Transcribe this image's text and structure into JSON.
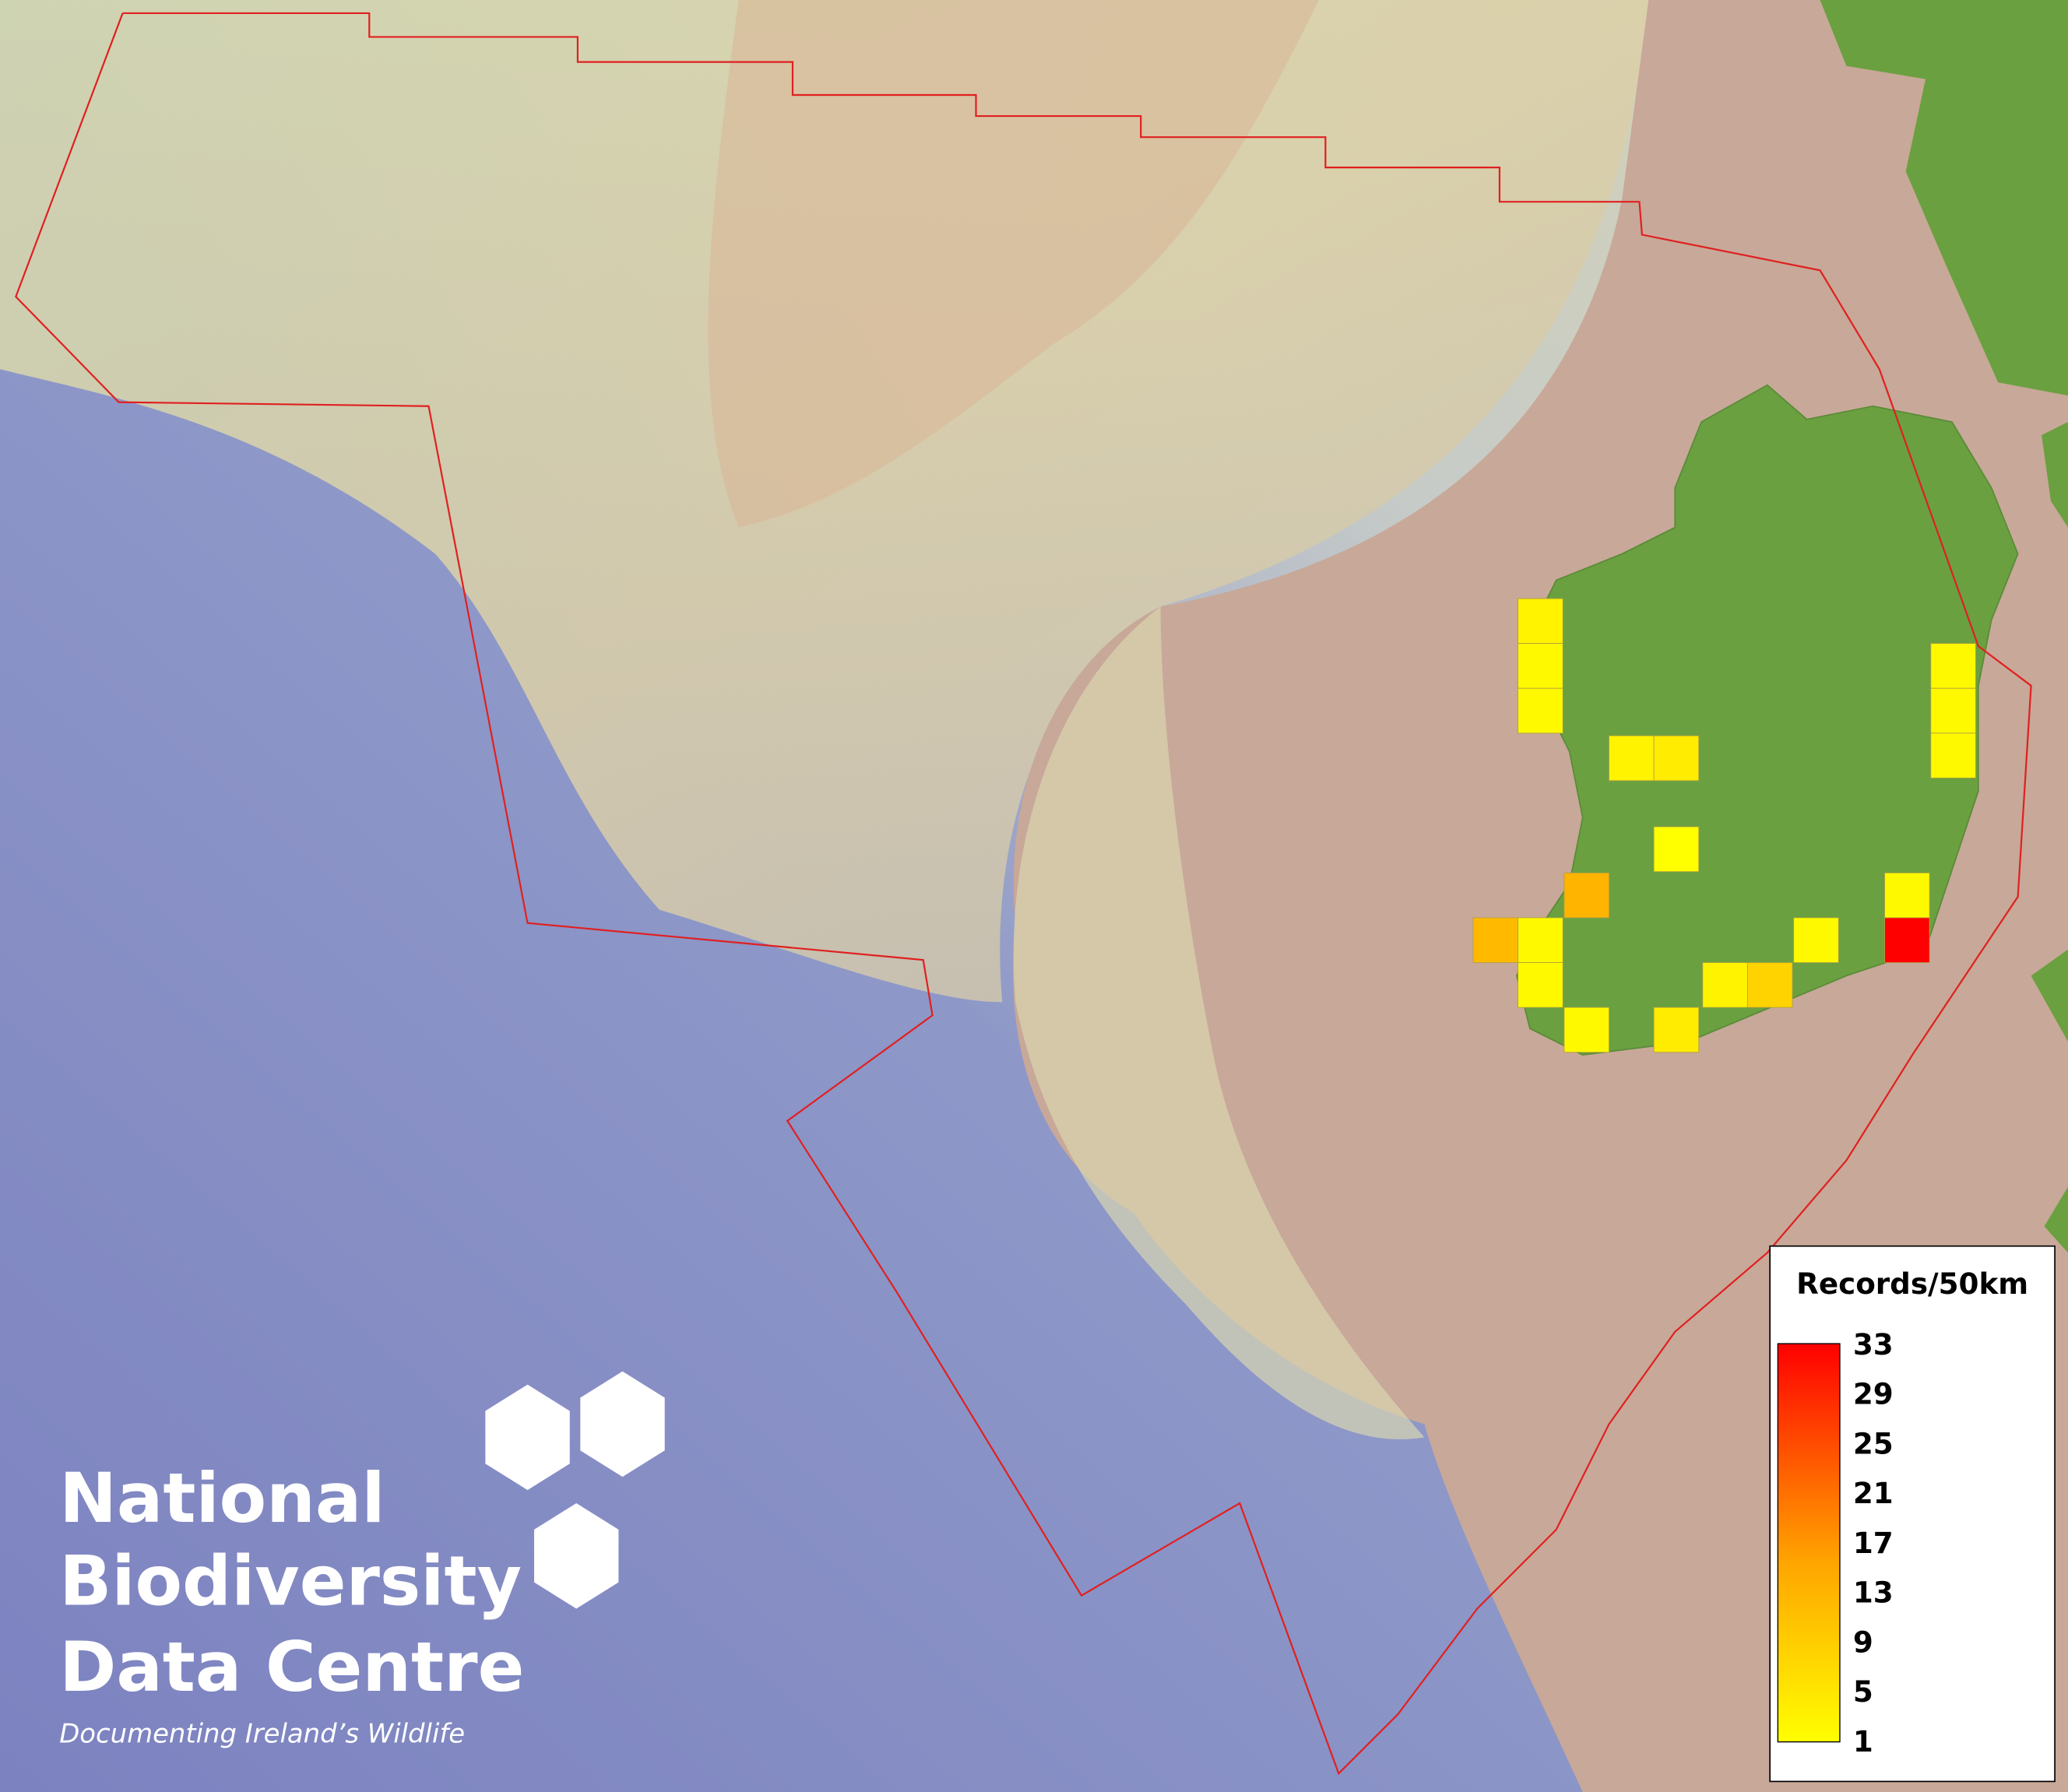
{
  "map": {
    "cells": [
      {
        "value": 3
      },
      {
        "value": 2
      },
      {
        "value": 2
      },
      {
        "value": 2
      },
      {
        "value": 2
      },
      {
        "value": 2
      },
      {
        "value": 3
      },
      {
        "value": 4
      },
      {
        "value": 1
      },
      {
        "value": 13
      },
      {
        "value": 12
      },
      {
        "value": 2
      },
      {
        "value": 2
      },
      {
        "value": 2
      },
      {
        "value": 33
      },
      {
        "value": 2
      },
      {
        "value": 3
      },
      {
        "value": 8
      },
      {
        "value": 2
      },
      {
        "value": 4
      }
    ],
    "low_color": "#ffff00",
    "mid_color": "#ffa500",
    "high_color": "#ff0000",
    "legend": {
      "title": "Records/50km",
      "lim": [
        1,
        33
      ],
      "ticks": [
        33,
        29,
        25,
        21,
        17,
        13,
        9,
        5,
        1
      ]
    }
  },
  "logo": {
    "line1": "National",
    "line2": "Biodiversity",
    "line3": "Data Centre",
    "tagline": "Documenting Ireland’s Wildlife"
  }
}
